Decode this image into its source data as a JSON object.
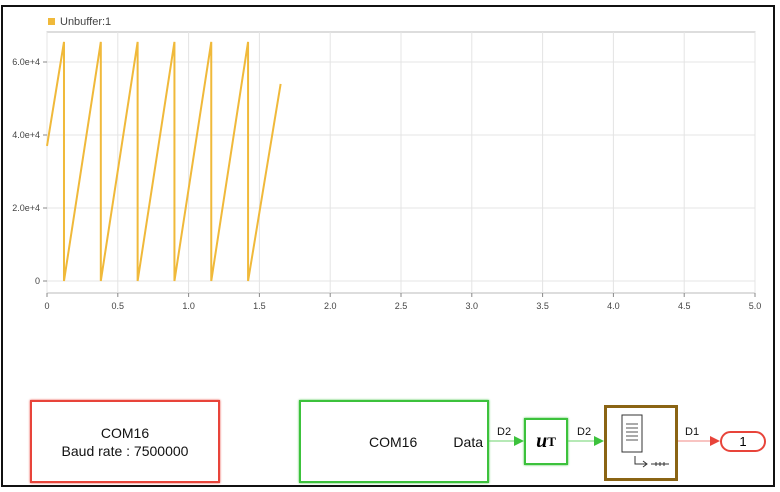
{
  "chart_data": {
    "type": "line",
    "legend": [
      "Unbuffer:1"
    ],
    "legend_placement": "top-left",
    "xlim": [
      0,
      5.0
    ],
    "ylim": [
      -4000,
      66000
    ],
    "xticks": [
      "0",
      "0.5",
      "1.0",
      "1.5",
      "2.0",
      "2.5",
      "3.0",
      "3.5",
      "4.0",
      "4.5",
      "5.0"
    ],
    "yticks": [
      "0",
      "2.0e+4",
      "4.0e+4",
      "6.0e+4"
    ],
    "grid": true,
    "series": [
      {
        "name": "Unbuffer:1",
        "color": "#f0b93a",
        "x": [
          0,
          0.12,
          0.12,
          0.38,
          0.38,
          0.64,
          0.64,
          0.9,
          0.9,
          1.16,
          1.16,
          1.42,
          1.42,
          1.65
        ],
        "y": [
          37000,
          65500,
          0,
          65500,
          0,
          65500,
          0,
          65500,
          0,
          65500,
          0,
          65500,
          0,
          54000
        ]
      }
    ]
  },
  "model": {
    "config_block": {
      "line1": "COM16",
      "line2": "Baud rate : 7500000"
    },
    "receive_block": {
      "title": "COM16",
      "port": "Data"
    },
    "transpose_block": {
      "base": "u",
      "sup": "T"
    },
    "signals": [
      "D2",
      "D2",
      "D1"
    ],
    "outport": "1",
    "colors": {
      "config": "#e8443a",
      "receive": "#3cc23c",
      "unbuffer": "#8a6414"
    }
  }
}
